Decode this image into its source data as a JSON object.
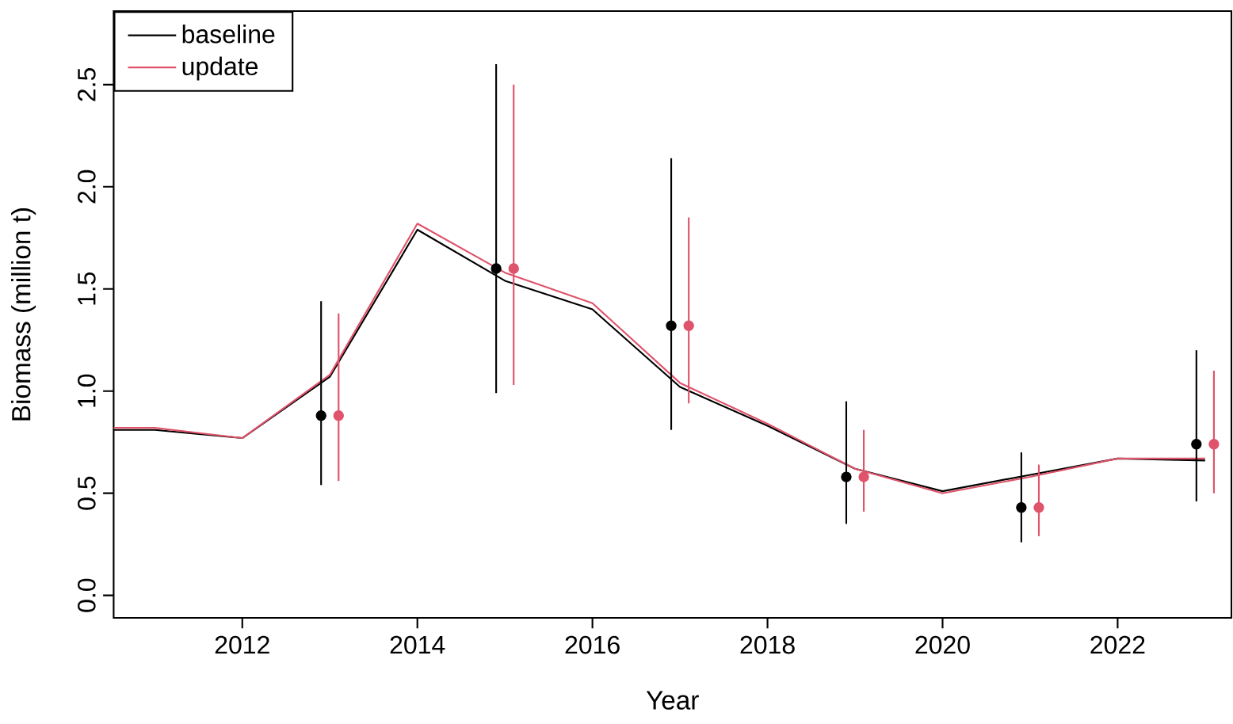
{
  "chart_data": {
    "type": "line",
    "xlabel": "Year",
    "ylabel": "Biomass (million t)",
    "xlim": [
      2010.53,
      2023.3
    ],
    "ylim": [
      -0.11,
      2.86
    ],
    "xticks": [
      2012,
      2014,
      2016,
      2018,
      2020,
      2022
    ],
    "yticks": [
      {
        "value": 0,
        "label": "0.0"
      },
      0.5,
      {
        "value": 1,
        "label": "1.0"
      },
      1.5,
      {
        "value": 2,
        "label": "2.0"
      },
      2.5
    ],
    "legend": "top left",
    "grid": false,
    "series": [
      {
        "name": "baseline",
        "color": "#000000",
        "x": [
          2010.53,
          2011,
          2012,
          2013,
          2014,
          2015,
          2016,
          2017,
          2018,
          2019,
          2020,
          2021,
          2022,
          2023
        ],
        "values": [
          0.81,
          0.81,
          0.77,
          1.07,
          1.79,
          1.54,
          1.4,
          1.02,
          0.83,
          0.62,
          0.51,
          0.59,
          0.67,
          0.66
        ]
      },
      {
        "name": "update",
        "color": "#DF536B",
        "x": [
          2010.53,
          2011,
          2012,
          2013,
          2014,
          2015,
          2016,
          2017,
          2018,
          2019,
          2020,
          2021,
          2022,
          2023
        ],
        "values": [
          0.82,
          0.82,
          0.77,
          1.08,
          1.82,
          1.58,
          1.43,
          1.04,
          0.84,
          0.62,
          0.5,
          0.58,
          0.67,
          0.67
        ]
      },
      {
        "type": "scatter",
        "color": "#000000",
        "x": [
          2012.9,
          2014.9,
          2016.9,
          2018.9,
          2020.9,
          2022.9
        ],
        "values": [
          0.88,
          1.6,
          1.32,
          0.58,
          0.43,
          0.74
        ],
        "errors": [
          [
            0.54,
            1.44
          ],
          [
            0.99,
            2.6
          ],
          [
            0.81,
            2.14
          ],
          [
            0.35,
            0.95
          ],
          [
            0.26,
            0.7
          ],
          [
            0.46,
            1.2
          ]
        ]
      },
      {
        "type": "scatter",
        "color": "#DF536B",
        "x": [
          2013.1,
          2015.1,
          2017.1,
          2019.1,
          2021.1,
          2023.1
        ],
        "values": [
          0.88,
          1.6,
          1.32,
          0.58,
          0.43,
          0.74
        ],
        "errors": [
          [
            0.56,
            1.38
          ],
          [
            1.03,
            2.5
          ],
          [
            0.94,
            1.85
          ],
          [
            0.41,
            0.81
          ],
          [
            0.29,
            0.64
          ],
          [
            0.5,
            1.1
          ]
        ]
      }
    ]
  }
}
